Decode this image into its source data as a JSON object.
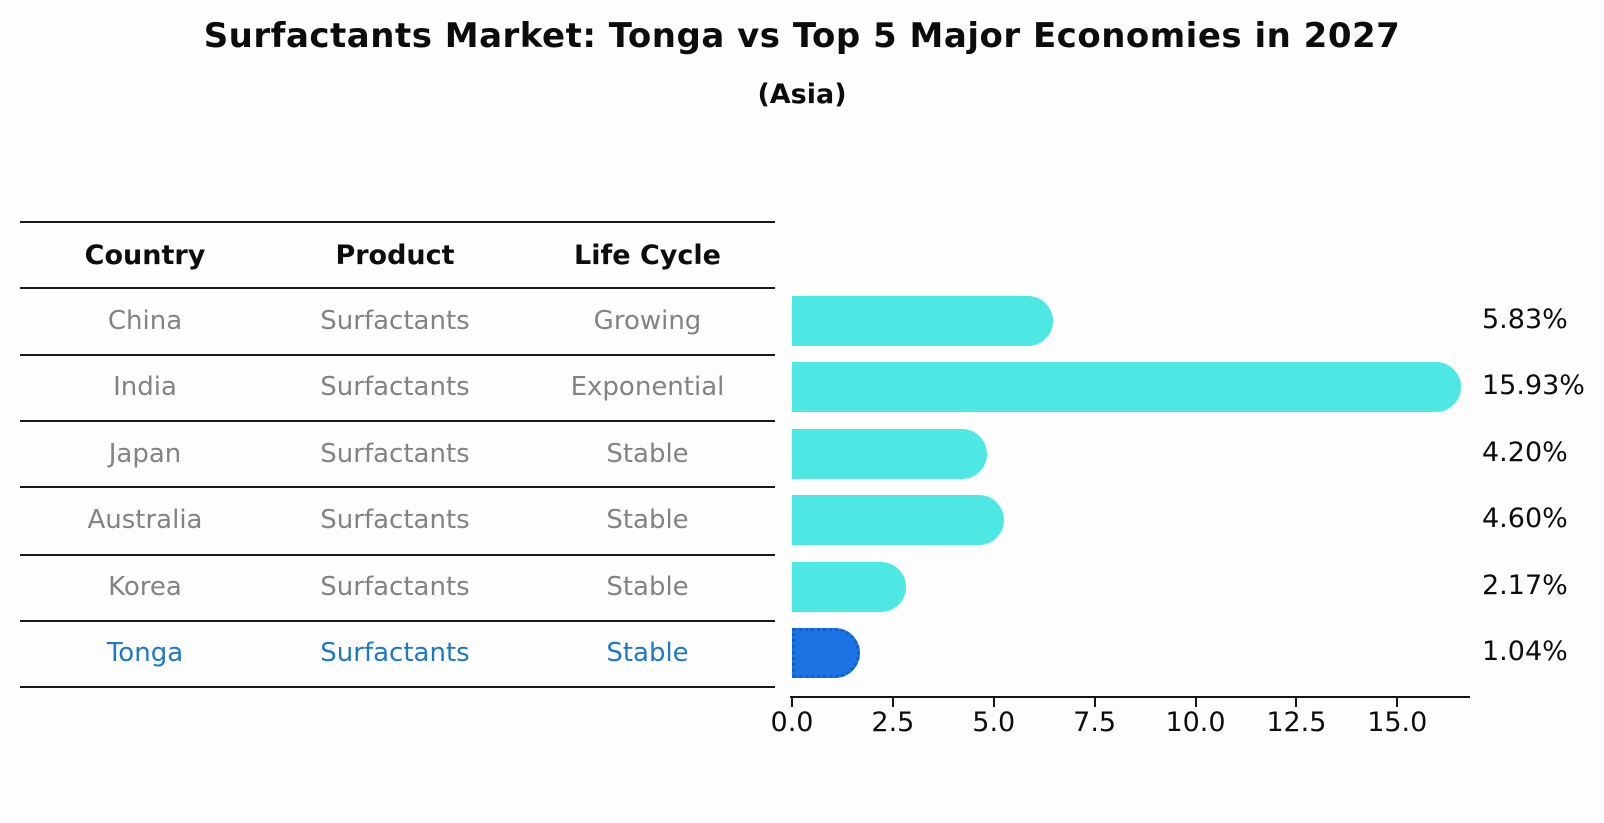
{
  "title": "Surfactants Market: Tonga vs Top 5 Major Economies in 2027",
  "subtitle": "(Asia)",
  "table": {
    "headers": {
      "country": "Country",
      "product": "Product",
      "life_cycle": "Life Cycle"
    },
    "rows": [
      {
        "country": "China",
        "product": "Surfactants",
        "life_cycle": "Growing",
        "highlight": false
      },
      {
        "country": "India",
        "product": "Surfactants",
        "life_cycle": "Exponential",
        "highlight": false
      },
      {
        "country": "Japan",
        "product": "Surfactants",
        "life_cycle": "Stable",
        "highlight": false
      },
      {
        "country": "Australia",
        "product": "Surfactants",
        "life_cycle": "Stable",
        "highlight": false
      },
      {
        "country": "Korea",
        "product": "Surfactants",
        "life_cycle": "Stable",
        "highlight": false
      },
      {
        "country": "Tonga",
        "product": "Surfactants",
        "life_cycle": "Stable",
        "highlight": true
      }
    ]
  },
  "chart_data": {
    "type": "bar",
    "orientation": "horizontal",
    "categories": [
      "China",
      "India",
      "Japan",
      "Australia",
      "Korea",
      "Tonga"
    ],
    "values": [
      5.83,
      15.93,
      4.2,
      4.6,
      2.17,
      1.04
    ],
    "value_labels": [
      "5.83%",
      "15.93%",
      "4.20%",
      "4.60%",
      "2.17%",
      "1.04%"
    ],
    "highlight_index": 5,
    "x_ticks": [
      0,
      2.5,
      5,
      7.5,
      10,
      12.5,
      15
    ],
    "x_tick_labels": [
      "0.0",
      "2.5",
      "5.0",
      "7.5",
      "10.0",
      "12.5",
      "15.0"
    ],
    "xlim": [
      0,
      16.8
    ],
    "grid": false,
    "legend": null,
    "bar_color": "#4de8e3",
    "highlight_bar_color": "#1c74e4",
    "highlight_text_color": "#1f77c8",
    "title": "Surfactants Market: Tonga vs Top 5 Major Economies in 2027",
    "subtitle": "(Asia)"
  }
}
